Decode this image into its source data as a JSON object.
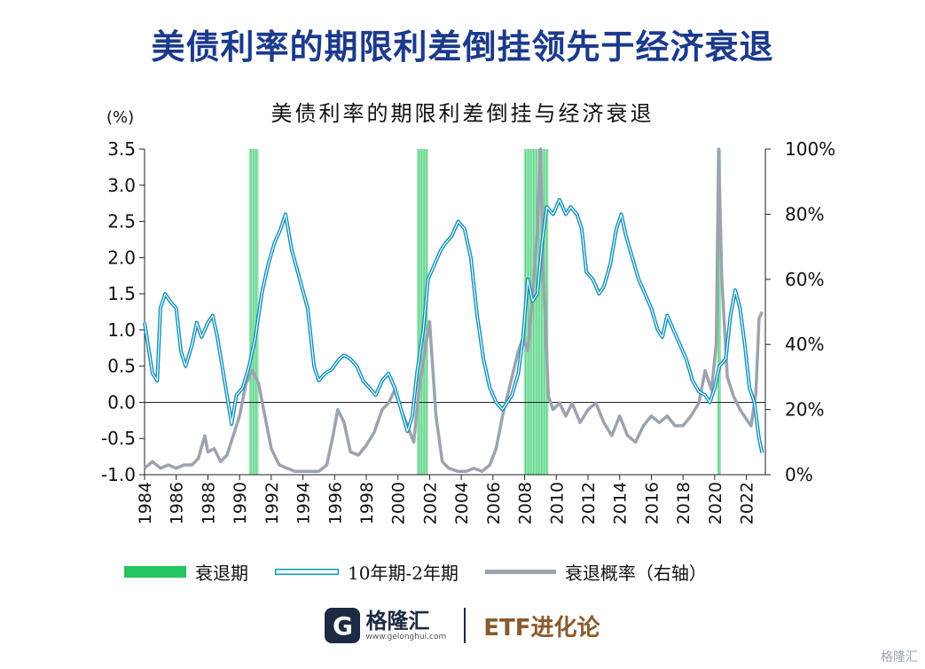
{
  "header": {
    "headline": "美债利率的期限利差倒挂领先于经济衰退"
  },
  "footer": {
    "brand_name": "格隆汇",
    "brand_url": "www.gelonghui.com",
    "partner": "ETF进化论",
    "watermark": "格隆汇"
  },
  "colors": {
    "headline": "#1b3a8c",
    "recession": "#22c55e",
    "spread": "#0e8fb8",
    "probability": "#9ca3af"
  },
  "chart_data": {
    "type": "line",
    "title": "美债利率的期限利差倒挂与经济衰退",
    "y_unit_label": "(%)",
    "ylim": [
      -1.0,
      3.5
    ],
    "yticks": [
      "3.5",
      "3.0",
      "2.5",
      "2.0",
      "1.5",
      "1.0",
      "0.5",
      "0.0",
      "-0.5",
      "-1.0"
    ],
    "y2lim": [
      0,
      100
    ],
    "y2ticks": [
      "100%",
      "80%",
      "60%",
      "40%",
      "20%",
      "0%"
    ],
    "xlim": [
      1984,
      2023.2
    ],
    "xticks": [
      "1984",
      "1986",
      "1988",
      "1990",
      "1992",
      "1994",
      "1996",
      "1998",
      "2000",
      "2002",
      "2004",
      "2006",
      "2008",
      "2010",
      "2012",
      "2014",
      "2016",
      "2018",
      "2020",
      "2022"
    ],
    "legend": [
      "衰退期",
      "10年期-2年期",
      "衰退概率（右轴）"
    ],
    "legend_position": "bottom",
    "recessions": [
      [
        1990.6,
        1991.2
      ],
      [
        2001.2,
        2001.9
      ],
      [
        2007.95,
        2009.5
      ],
      [
        2020.15,
        2020.4
      ]
    ],
    "series": [
      {
        "name": "10年期-2年期",
        "axis": "left",
        "points": [
          [
            1984.0,
            1.1
          ],
          [
            1984.5,
            0.4
          ],
          [
            1984.8,
            0.3
          ],
          [
            1985.0,
            1.3
          ],
          [
            1985.3,
            1.5
          ],
          [
            1985.6,
            1.4
          ],
          [
            1986.0,
            1.3
          ],
          [
            1986.3,
            0.7
          ],
          [
            1986.6,
            0.5
          ],
          [
            1987.0,
            0.8
          ],
          [
            1987.3,
            1.1
          ],
          [
            1987.6,
            0.9
          ],
          [
            1988.0,
            1.1
          ],
          [
            1988.3,
            1.2
          ],
          [
            1988.6,
            0.9
          ],
          [
            1988.9,
            0.5
          ],
          [
            1989.2,
            0.1
          ],
          [
            1989.5,
            -0.3
          ],
          [
            1989.8,
            0.1
          ],
          [
            1990.2,
            0.2
          ],
          [
            1990.6,
            0.5
          ],
          [
            1991.0,
            0.9
          ],
          [
            1991.4,
            1.5
          ],
          [
            1991.8,
            1.9
          ],
          [
            1992.2,
            2.2
          ],
          [
            1992.6,
            2.4
          ],
          [
            1992.9,
            2.6
          ],
          [
            1993.3,
            2.1
          ],
          [
            1993.8,
            1.7
          ],
          [
            1994.3,
            1.3
          ],
          [
            1994.7,
            0.5
          ],
          [
            1995.0,
            0.3
          ],
          [
            1995.4,
            0.4
          ],
          [
            1995.8,
            0.45
          ],
          [
            1996.3,
            0.6
          ],
          [
            1996.6,
            0.65
          ],
          [
            1997.0,
            0.6
          ],
          [
            1997.4,
            0.5
          ],
          [
            1997.8,
            0.3
          ],
          [
            1998.2,
            0.2
          ],
          [
            1998.6,
            0.1
          ],
          [
            1999.0,
            0.3
          ],
          [
            1999.4,
            0.4
          ],
          [
            1999.8,
            0.2
          ],
          [
            2000.2,
            -0.1
          ],
          [
            2000.6,
            -0.4
          ],
          [
            2000.9,
            -0.2
          ],
          [
            2001.2,
            0.4
          ],
          [
            2001.6,
            1.0
          ],
          [
            2001.9,
            1.7
          ],
          [
            2002.3,
            1.9
          ],
          [
            2002.7,
            2.1
          ],
          [
            2003.0,
            2.2
          ],
          [
            2003.4,
            2.3
          ],
          [
            2003.8,
            2.5
          ],
          [
            2004.2,
            2.4
          ],
          [
            2004.6,
            2.0
          ],
          [
            2005.0,
            1.2
          ],
          [
            2005.4,
            0.6
          ],
          [
            2005.8,
            0.2
          ],
          [
            2006.2,
            0.0
          ],
          [
            2006.6,
            -0.1
          ],
          [
            2006.9,
            0.0
          ],
          [
            2007.2,
            0.1
          ],
          [
            2007.6,
            0.4
          ],
          [
            2007.9,
            0.9
          ],
          [
            2008.2,
            1.7
          ],
          [
            2008.5,
            1.4
          ],
          [
            2008.8,
            1.5
          ],
          [
            2009.1,
            2.2
          ],
          [
            2009.4,
            2.7
          ],
          [
            2009.8,
            2.6
          ],
          [
            2010.2,
            2.8
          ],
          [
            2010.6,
            2.6
          ],
          [
            2010.9,
            2.7
          ],
          [
            2011.3,
            2.6
          ],
          [
            2011.6,
            2.4
          ],
          [
            2011.9,
            1.8
          ],
          [
            2012.3,
            1.7
          ],
          [
            2012.7,
            1.5
          ],
          [
            2013.0,
            1.6
          ],
          [
            2013.4,
            1.9
          ],
          [
            2013.8,
            2.4
          ],
          [
            2014.1,
            2.6
          ],
          [
            2014.4,
            2.3
          ],
          [
            2014.8,
            2.0
          ],
          [
            2015.2,
            1.7
          ],
          [
            2015.6,
            1.5
          ],
          [
            2016.0,
            1.3
          ],
          [
            2016.4,
            1.0
          ],
          [
            2016.7,
            0.9
          ],
          [
            2017.0,
            1.2
          ],
          [
            2017.4,
            1.0
          ],
          [
            2017.8,
            0.8
          ],
          [
            2018.2,
            0.6
          ],
          [
            2018.6,
            0.3
          ],
          [
            2019.0,
            0.15
          ],
          [
            2019.4,
            0.1
          ],
          [
            2019.7,
            0.0
          ],
          [
            2020.0,
            0.2
          ],
          [
            2020.3,
            0.5
          ],
          [
            2020.7,
            0.6
          ],
          [
            2021.0,
            1.2
          ],
          [
            2021.3,
            1.55
          ],
          [
            2021.6,
            1.3
          ],
          [
            2021.9,
            0.8
          ],
          [
            2022.2,
            0.2
          ],
          [
            2022.5,
            0.0
          ],
          [
            2022.8,
            -0.5
          ],
          [
            2023.0,
            -0.7
          ]
        ]
      },
      {
        "name": "衰退概率（右轴）",
        "axis": "right",
        "points": [
          [
            1984.0,
            2
          ],
          [
            1984.5,
            4
          ],
          [
            1985.0,
            2
          ],
          [
            1985.5,
            3
          ],
          [
            1986.0,
            2
          ],
          [
            1986.5,
            3
          ],
          [
            1987.0,
            3
          ],
          [
            1987.4,
            5
          ],
          [
            1987.8,
            12
          ],
          [
            1988.0,
            7
          ],
          [
            1988.4,
            8
          ],
          [
            1988.8,
            4
          ],
          [
            1989.2,
            6
          ],
          [
            1989.6,
            12
          ],
          [
            1990.0,
            18
          ],
          [
            1990.4,
            28
          ],
          [
            1990.8,
            32
          ],
          [
            1991.2,
            28
          ],
          [
            1991.6,
            18
          ],
          [
            1992.0,
            8
          ],
          [
            1992.5,
            3
          ],
          [
            1993.0,
            2
          ],
          [
            1993.5,
            1
          ],
          [
            1994.0,
            1
          ],
          [
            1994.5,
            1
          ],
          [
            1995.0,
            1
          ],
          [
            1995.5,
            3
          ],
          [
            1995.9,
            12
          ],
          [
            1996.2,
            20
          ],
          [
            1996.6,
            16
          ],
          [
            1997.0,
            7
          ],
          [
            1997.5,
            6
          ],
          [
            1998.0,
            9
          ],
          [
            1998.5,
            13
          ],
          [
            1999.0,
            20
          ],
          [
            1999.4,
            22
          ],
          [
            1999.8,
            26
          ],
          [
            2000.2,
            20
          ],
          [
            2000.6,
            15
          ],
          [
            2001.0,
            10
          ],
          [
            2001.3,
            25
          ],
          [
            2001.7,
            38
          ],
          [
            2002.0,
            47
          ],
          [
            2002.4,
            18
          ],
          [
            2002.8,
            4
          ],
          [
            2003.2,
            2
          ],
          [
            2003.8,
            1
          ],
          [
            2004.3,
            1
          ],
          [
            2004.8,
            2
          ],
          [
            2005.3,
            1
          ],
          [
            2005.8,
            3
          ],
          [
            2006.2,
            8
          ],
          [
            2006.6,
            18
          ],
          [
            2006.9,
            24
          ],
          [
            2007.2,
            30
          ],
          [
            2007.6,
            38
          ],
          [
            2007.9,
            42
          ],
          [
            2008.2,
            38
          ],
          [
            2008.5,
            55
          ],
          [
            2008.8,
            75
          ],
          [
            2009.0,
            100
          ],
          [
            2009.2,
            60
          ],
          [
            2009.5,
            24
          ],
          [
            2009.8,
            20
          ],
          [
            2010.2,
            22
          ],
          [
            2010.6,
            18
          ],
          [
            2011.0,
            22
          ],
          [
            2011.5,
            16
          ],
          [
            2012.0,
            20
          ],
          [
            2012.5,
            22
          ],
          [
            2013.0,
            16
          ],
          [
            2013.5,
            12
          ],
          [
            2014.0,
            18
          ],
          [
            2014.5,
            12
          ],
          [
            2015.0,
            10
          ],
          [
            2015.5,
            15
          ],
          [
            2016.0,
            18
          ],
          [
            2016.5,
            16
          ],
          [
            2017.0,
            18
          ],
          [
            2017.5,
            15
          ],
          [
            2018.0,
            15
          ],
          [
            2018.5,
            18
          ],
          [
            2019.0,
            22
          ],
          [
            2019.4,
            32
          ],
          [
            2019.8,
            26
          ],
          [
            2020.1,
            40
          ],
          [
            2020.25,
            100
          ],
          [
            2020.45,
            60
          ],
          [
            2020.8,
            30
          ],
          [
            2021.2,
            24
          ],
          [
            2021.6,
            20
          ],
          [
            2022.0,
            17
          ],
          [
            2022.3,
            15
          ],
          [
            2022.6,
            25
          ],
          [
            2022.8,
            48
          ],
          [
            2023.0,
            50
          ]
        ]
      }
    ]
  }
}
